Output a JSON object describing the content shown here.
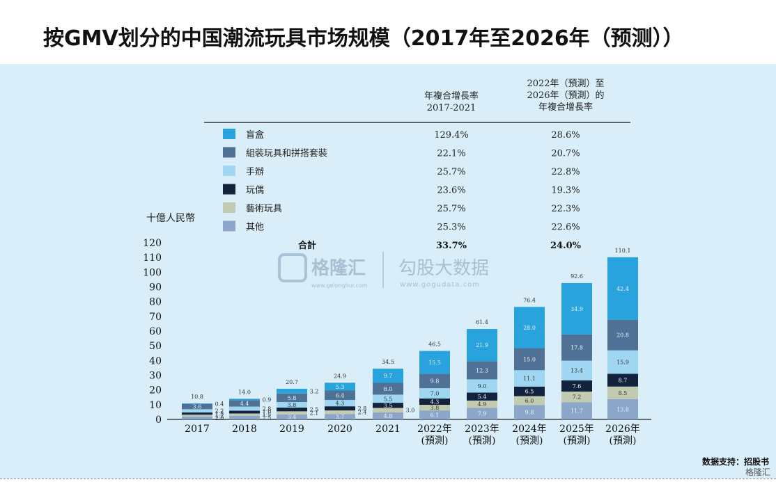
{
  "title": "按GMV划分的中国潮流玩具市场规模（2017年至2026年（预测））",
  "source": "数据支持：招股书",
  "corner_logo": "格隆汇",
  "watermark": {
    "brand1": "格隆汇",
    "url1": "www.gelonghui.com",
    "brand2": "勾股大数据",
    "url2": "www.gogudata.com"
  },
  "table": {
    "col1_header": [
      "年複合增長率",
      "2017-2021"
    ],
    "col2_header": [
      "2022年（預測）至",
      "2026年（預測）的",
      "年複合增長率"
    ],
    "rows": [
      {
        "label": "盲盒",
        "c1": "129.4%",
        "c2": "28.6%",
        "color": "#29a3dd"
      },
      {
        "label": "組裝玩具和拼搭套裝",
        "c1": "22.1%",
        "c2": "20.7%",
        "color": "#4f7196"
      },
      {
        "label": "手辦",
        "c1": "25.7%",
        "c2": "22.8%",
        "color": "#9fd7f2"
      },
      {
        "label": "玩偶",
        "c1": "23.6%",
        "c2": "19.3%",
        "color": "#14233d"
      },
      {
        "label": "藝術玩具",
        "c1": "25.7%",
        "c2": "22.3%",
        "color": "#c2cbb0"
      },
      {
        "label": "其他",
        "c1": "25.3%",
        "c2": "22.6%",
        "color": "#8ba6c8"
      }
    ],
    "total": {
      "label": "合計",
      "c1": "33.7%",
      "c2": "24.0%"
    }
  },
  "chart_data": {
    "type": "bar",
    "stacked": true,
    "ylabel": "十億人民幣",
    "ylim": [
      0,
      120
    ],
    "yticks": [
      0,
      10,
      20,
      30,
      40,
      50,
      60,
      70,
      80,
      90,
      100,
      110,
      120
    ],
    "categories": [
      "2017",
      "2018",
      "2019",
      "2020",
      "2021",
      "2022年\n(預測)",
      "2023年\n(預測)",
      "2024年\n(預測)",
      "2025年\n(預測)",
      "2026年\n(預測)"
    ],
    "totals": [
      "10.8",
      "14.0",
      "20.7",
      "24.9",
      "34.5",
      "46.5",
      "61.4",
      "76.4",
      "92.6",
      "110.1"
    ],
    "series": [
      {
        "name": "其他",
        "color": "#8ba6c8",
        "values": [
          2.0,
          2.5,
          3.4,
          3.7,
          4.8,
          6.1,
          7.9,
          9.8,
          11.7,
          13.8
        ],
        "labels": [
          "2.0",
          "2.5",
          "3.4",
          "3.7",
          "4.8",
          "6.1",
          "7.9",
          "9.8",
          "11.7",
          "13.8"
        ]
      },
      {
        "name": "藝術玩具",
        "color": "#c2cbb0",
        "values": [
          1.2,
          1.5,
          2.1,
          2.4,
          3.0,
          3.8,
          4.9,
          6.0,
          7.2,
          8.5
        ],
        "labels": [
          "1.2",
          "1.5",
          "2.1",
          "2.4",
          "3.0",
          "3.8",
          "4.9",
          "6.0",
          "7.2",
          "8.5"
        ]
      },
      {
        "name": "玩偶",
        "color": "#14233d",
        "values": [
          1.5,
          1.9,
          2.5,
          2.8,
          3.5,
          4.3,
          5.4,
          6.5,
          7.6,
          8.7
        ],
        "labels": [
          "1.5",
          "1.9",
          "2.5",
          "2.8",
          "3.5",
          "4.3",
          "5.4",
          "6.5",
          "7.6",
          "8.7"
        ]
      },
      {
        "name": "手辦",
        "color": "#9fd7f2",
        "values": [
          2.2,
          2.8,
          3.8,
          4.3,
          5.5,
          7.0,
          9.0,
          11.1,
          13.4,
          15.9
        ],
        "labels": [
          "2.2",
          "2.8",
          "3.8",
          "4.3",
          "5.5",
          "7.0",
          "9.0",
          "11.1",
          "13.4",
          "15.9"
        ]
      },
      {
        "name": "組裝玩具和拼搭套裝",
        "color": "#4f7196",
        "values": [
          3.6,
          4.4,
          5.8,
          6.4,
          8.0,
          9.8,
          12.3,
          15.0,
          17.8,
          20.8
        ],
        "labels": [
          "3.6",
          "4.4",
          "5.8",
          "6.4",
          "8.0",
          "9.8",
          "12.3",
          "15.0",
          "17.8",
          "20.8"
        ]
      },
      {
        "name": "盲盒",
        "color": "#29a3dd",
        "values": [
          0.4,
          0.9,
          3.2,
          5.3,
          9.7,
          15.5,
          21.9,
          28.0,
          34.9,
          42.4
        ],
        "labels": [
          "0.4",
          "0.9",
          "3.2",
          "5.3",
          "9.7",
          "15.5",
          "21.9",
          "28.0",
          "34.9",
          "42.4"
        ]
      }
    ]
  }
}
